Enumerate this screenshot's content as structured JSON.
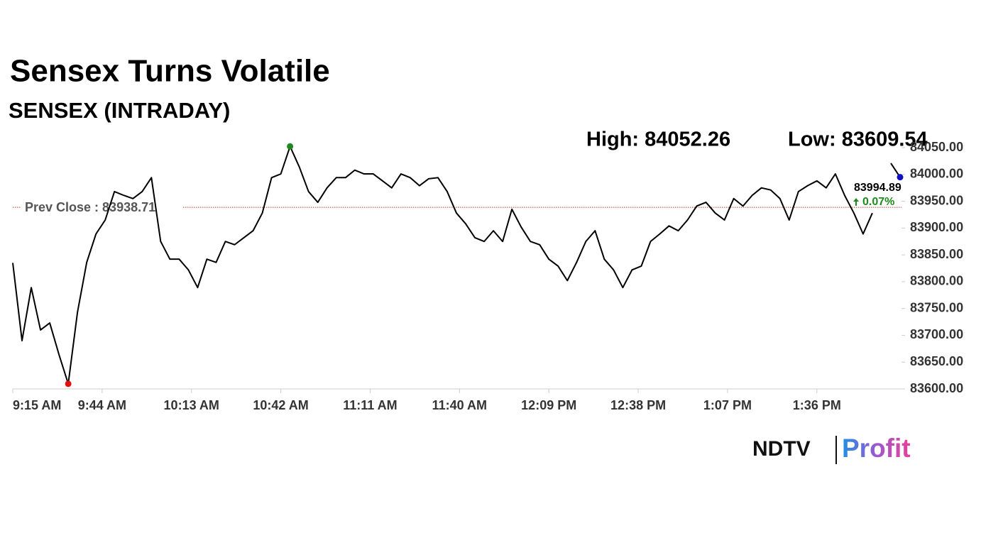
{
  "chart_data": {
    "type": "line",
    "title": "Sensex Turns Volatile",
    "subtitle": "SENSEX (INTRADAY)",
    "high_label": "High: 84052.26",
    "low_label": "Low: 83609.54",
    "prev_close": 83938.71,
    "prev_close_label": "Prev Close : 83938.71",
    "last_label": "83994.89",
    "change_label": "0.07%",
    "color": "#000000",
    "reference_color": "#c0392b",
    "high_color": "#1e8a1e",
    "low_color": "#e01010",
    "last_color": "#1010c0",
    "change_color": "#1e8a1e",
    "x": [
      "9:15 AM",
      "9:18 AM",
      "9:21 AM",
      "9:24 AM",
      "9:27 AM",
      "9:30 AM",
      "9:33 AM",
      "9:36 AM",
      "9:39 AM",
      "9:42 AM",
      "9:45 AM",
      "9:48 AM",
      "9:51 AM",
      "9:54 AM",
      "9:57 AM",
      "10:00 AM",
      "10:03 AM",
      "10:06 AM",
      "10:09 AM",
      "10:12 AM",
      "10:15 AM",
      "10:18 AM",
      "10:21 AM",
      "10:24 AM",
      "10:27 AM",
      "10:30 AM",
      "10:33 AM",
      "10:36 AM",
      "10:39 AM",
      "10:42 AM",
      "10:45 AM",
      "10:48 AM",
      "10:51 AM",
      "10:54 AM",
      "10:57 AM",
      "11:00 AM",
      "11:03 AM",
      "11:06 AM",
      "11:09 AM",
      "11:12 AM",
      "11:15 AM",
      "11:18 AM",
      "11:21 AM",
      "11:24 AM",
      "11:27 AM",
      "11:30 AM",
      "11:33 AM",
      "11:36 AM",
      "11:39 AM",
      "11:42 AM",
      "11:45 AM",
      "11:48 AM",
      "11:51 AM",
      "11:54 AM",
      "11:57 AM",
      "12:00 PM",
      "12:03 PM",
      "12:06 PM",
      "12:09 PM",
      "12:12 PM",
      "12:15 PM",
      "12:18 PM",
      "12:21 PM",
      "12:24 PM",
      "12:27 PM",
      "12:30 PM",
      "12:33 PM",
      "12:36 PM",
      "12:39 PM",
      "12:42 PM",
      "12:45 PM",
      "12:48 PM",
      "12:51 PM",
      "12:54 PM",
      "12:57 PM",
      "1:00 PM",
      "1:03 PM",
      "1:06 PM",
      "1:09 PM",
      "1:12 PM",
      "1:15 PM",
      "1:18 PM",
      "1:21 PM",
      "1:24 PM",
      "1:27 PM",
      "1:30 PM",
      "1:33 PM",
      "1:36 PM",
      "1:39 PM",
      "1:42 PM",
      "1:45 PM",
      "1:48 PM",
      "1:51 PM",
      "1:54 PM",
      "1:57 PM",
      "2:00 PM",
      "2:03 PM"
    ],
    "values": [
      83835,
      83690,
      83789,
      83710,
      83723,
      83664,
      83609.54,
      83743,
      83836,
      83889,
      83915,
      83968,
      83961,
      83955,
      83968,
      83994,
      83875,
      83842,
      83842,
      83822,
      83789,
      83842,
      83836,
      83875,
      83869,
      83882,
      83895,
      83928,
      83994,
      84001,
      84052.26,
      84014,
      83968,
      83948,
      83975,
      83994,
      83994,
      84008,
      84001,
      84001,
      83988,
      83975,
      84001,
      83994,
      83979,
      83992,
      83994,
      83968,
      83928,
      83908,
      83882,
      83875,
      83895,
      83875,
      83935,
      83902,
      83875,
      83869,
      83842,
      83829,
      83802,
      83836,
      83875,
      83895,
      83842,
      83822,
      83789,
      83822,
      83829,
      83875,
      83889,
      83904,
      83895,
      83915,
      83941,
      83948,
      83928,
      83915,
      83955,
      83941,
      83961,
      83975,
      83971,
      83955,
      83915,
      83968,
      83979,
      83988,
      83975,
      84001,
      83961,
      83928,
      83889,
      83928,
      null,
      84021,
      83994.89
    ],
    "xlim": [
      "9:15 AM",
      "2:03 PM"
    ],
    "xticks": [
      "9:15 AM",
      "9:44 AM",
      "10:13 AM",
      "10:42 AM",
      "11:11 AM",
      "11:40 AM",
      "12:09 PM",
      "12:38 PM",
      "1:07 PM",
      "1:36 PM"
    ],
    "ylim": [
      83600,
      84050
    ],
    "yticks": [
      {
        "value": 83600,
        "label": "83600.00"
      },
      {
        "value": 83650,
        "label": "83650.00"
      },
      {
        "value": 83700,
        "label": "83700.00"
      },
      {
        "value": 83750,
        "label": "83750.00"
      },
      {
        "value": 83800,
        "label": "83800.00"
      },
      {
        "value": 83850,
        "label": "83850.00"
      },
      {
        "value": 83900,
        "label": "83900.00"
      },
      {
        "value": 83950,
        "label": "83950.00"
      },
      {
        "value": 84000,
        "label": "84000.00"
      },
      {
        "value": 84050,
        "label": "84050.00"
      }
    ],
    "logo": {
      "left": "NDTV",
      "right": "Profit"
    }
  }
}
